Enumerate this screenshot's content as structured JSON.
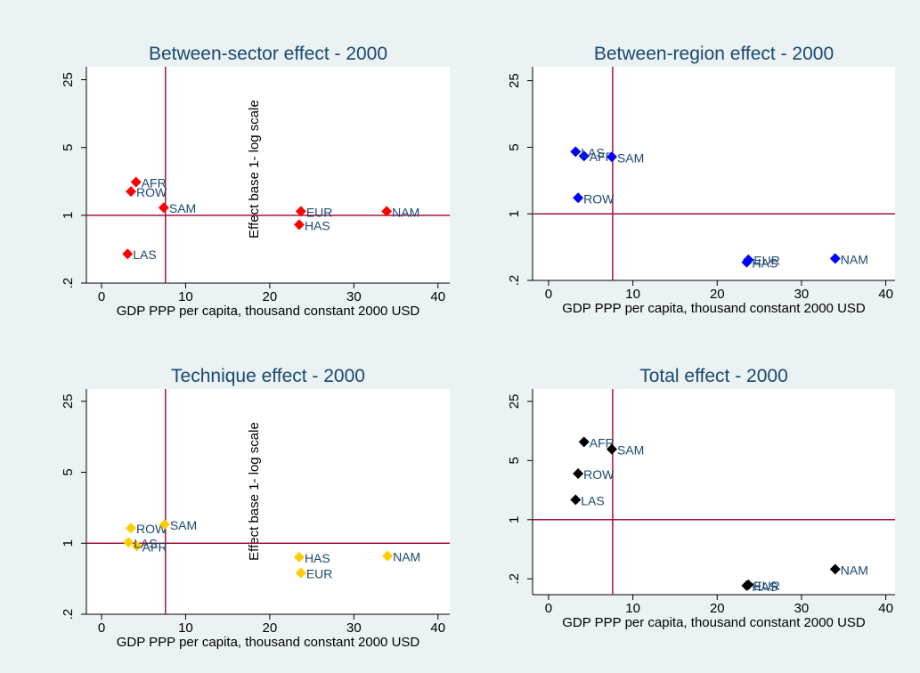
{
  "chart_data": [
    {
      "type": "scatter",
      "title": "Between-sector effect - 2000",
      "x_label": "GDP PPP per capita, thousand constant 2000 USD",
      "annotation": "Effect base 1- log scale",
      "log_y": true,
      "color": "#ff0000",
      "xline": 7.6,
      "yline": 1,
      "xlim": [
        -1.8,
        41.4
      ],
      "ylim": [
        0.2,
        34
      ],
      "xticks": [
        0,
        10,
        20,
        30,
        40
      ],
      "yticks": [
        {
          "value": 0.2,
          "label": ".2"
        },
        1,
        5,
        25
      ],
      "point_labels": [
        "AFR",
        "ROW",
        "SAM",
        "EUR",
        "NAM",
        "HAS",
        "LAS"
      ],
      "x": [
        4.1,
        3.5,
        7.4,
        23.7,
        33.9,
        23.5,
        3.1
      ],
      "y": [
        2.2,
        1.76,
        1.2,
        1.1,
        1.1,
        0.8,
        0.4
      ]
    },
    {
      "type": "scatter",
      "title": "Between-region effect - 2000",
      "x_label": "GDP PPP per capita, thousand constant 2000 USD",
      "log_y": true,
      "color": "#0000ff",
      "xline": 7.6,
      "yline": 1,
      "xlim": [
        -1.9,
        41.1
      ],
      "ylim": [
        0.2,
        35
      ],
      "xticks": [
        0,
        10,
        20,
        30,
        40
      ],
      "yticks": [
        {
          "value": 0.2,
          "label": ".2"
        },
        1,
        5,
        25
      ],
      "point_labels": [
        "AFR",
        "ROW",
        "SAM",
        "EUR",
        "NAM",
        "HAS",
        "LAS"
      ],
      "x": [
        4.2,
        3.5,
        7.5,
        23.7,
        34,
        23.5,
        3.2
      ],
      "y": [
        4.05,
        1.47,
        3.96,
        0.33,
        0.34,
        0.31,
        4.5
      ]
    },
    {
      "type": "scatter",
      "title": "Technique effect - 2000",
      "x_label": "GDP PPP per capita, thousand constant 2000 USD",
      "annotation": "Effect base 1- log scale",
      "log_y": true,
      "color": "#ffcc00",
      "xline": 7.6,
      "yline": 1,
      "xlim": [
        -1.8,
        41.4
      ],
      "ylim": [
        0.2,
        33
      ],
      "xticks": [
        0,
        10,
        20,
        30,
        40
      ],
      "yticks": [
        {
          "value": 0.2,
          "label": ".2"
        },
        1,
        5,
        25
      ],
      "point_labels": [
        "AFR",
        "ROW",
        "SAM",
        "EUR",
        "NAM",
        "HAS",
        "LAS"
      ],
      "x": [
        4.2,
        3.5,
        7.5,
        23.7,
        34,
        23.5,
        3.2
      ],
      "y": [
        0.94,
        1.41,
        1.53,
        0.51,
        0.75,
        0.73,
        1.02
      ]
    },
    {
      "type": "scatter",
      "title": "Total effect - 2000",
      "x_label": "GDP PPP per capita, thousand constant 2000 USD",
      "log_y": true,
      "color": "#000000",
      "xline": 7.6,
      "yline": 1,
      "xlim": [
        -1.9,
        41.1
      ],
      "ylim": [
        0.13,
        35
      ],
      "xticks": [
        0,
        10,
        20,
        30,
        40
      ],
      "yticks": [
        {
          "value": 0.2,
          "label": ".2"
        },
        1,
        5,
        25
      ],
      "point_labels": [
        "AFR",
        "ROW",
        "SAM",
        "EUR",
        "NAM",
        "HAS",
        "LAS"
      ],
      "x": [
        4.2,
        3.5,
        7.5,
        23.7,
        34,
        23.5,
        3.2
      ],
      "y": [
        8.3,
        3.5,
        6.8,
        0.17,
        0.26,
        0.166,
        1.72
      ]
    }
  ]
}
